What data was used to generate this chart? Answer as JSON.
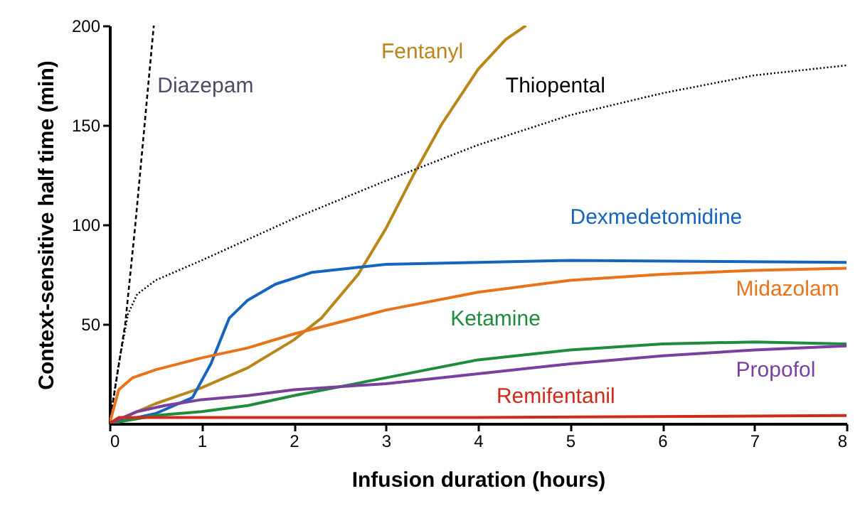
{
  "chart_data": {
    "type": "line",
    "xlabel": "Infusion duration (hours)",
    "ylabel": "Context-sensitive half time (min)",
    "xlim": [
      0,
      8
    ],
    "ylim": [
      0,
      200
    ],
    "xticks": [
      0,
      1,
      2,
      3,
      4,
      5,
      6,
      7,
      8
    ],
    "yticks": [
      50,
      100,
      150,
      200
    ],
    "marker": "none",
    "series": [
      {
        "name": "Diazepam",
        "color": "#000000",
        "line_style": "dashed",
        "x": [
          0,
          0.17,
          0.28,
          0.38,
          0.48
        ],
        "values": [
          0,
          50,
          100,
          150,
          200
        ]
      },
      {
        "name": "Fentanyl",
        "color": "#b8861b",
        "line_style": "solid",
        "x": [
          0,
          0.5,
          1,
          1.5,
          2,
          2.3,
          2.7,
          3,
          3.3,
          3.6,
          4,
          4.3,
          4.52
        ],
        "values": [
          0,
          10,
          18,
          28,
          42,
          53,
          75,
          98,
          125,
          150,
          178,
          193,
          200
        ]
      },
      {
        "name": "Thiopental",
        "color": "#000000",
        "line_style": "dotted",
        "x": [
          0,
          0.1,
          0.2,
          0.3,
          0.5,
          1,
          2,
          3,
          4,
          5,
          6,
          7,
          8
        ],
        "values": [
          0,
          30,
          55,
          65,
          72,
          82,
          103,
          122,
          140,
          155,
          166,
          175,
          180
        ]
      },
      {
        "name": "Dexmedetomidine",
        "color": "#1565c0",
        "line_style": "solid",
        "x": [
          0,
          0.5,
          0.9,
          1.1,
          1.3,
          1.5,
          1.8,
          2.2,
          3,
          4,
          5,
          8
        ],
        "values": [
          0,
          5,
          13,
          30,
          53,
          62,
          70,
          76,
          80,
          81,
          82,
          81
        ]
      },
      {
        "name": "Midazolam",
        "color": "#e8731a",
        "line_style": "solid",
        "x": [
          0,
          0.1,
          0.25,
          0.5,
          1,
          1.5,
          2,
          2.5,
          3,
          4,
          5,
          6,
          7,
          8
        ],
        "values": [
          0,
          17,
          23,
          27,
          33,
          38,
          45,
          51,
          57,
          66,
          72,
          75,
          77,
          78
        ]
      },
      {
        "name": "Ketamine",
        "color": "#1e8c3a",
        "line_style": "solid",
        "x": [
          0,
          0.5,
          1,
          1.5,
          2,
          3,
          4,
          5,
          6,
          7,
          8
        ],
        "values": [
          0,
          4,
          6,
          9,
          14,
          23,
          32,
          37,
          40,
          41,
          40
        ]
      },
      {
        "name": "Propofol",
        "color": "#7b3fa0",
        "line_style": "solid",
        "x": [
          0,
          0.3,
          0.6,
          1,
          1.5,
          2,
          3,
          4,
          5,
          6,
          7,
          8
        ],
        "values": [
          0,
          6,
          9,
          12,
          14,
          17,
          20,
          25,
          30,
          34,
          37,
          39
        ]
      },
      {
        "name": "Remifentanil",
        "color": "#d02a1a",
        "line_style": "solid",
        "x": [
          0,
          0.1,
          1,
          4,
          8
        ],
        "values": [
          0,
          3,
          3,
          3,
          4
        ]
      }
    ]
  }
}
